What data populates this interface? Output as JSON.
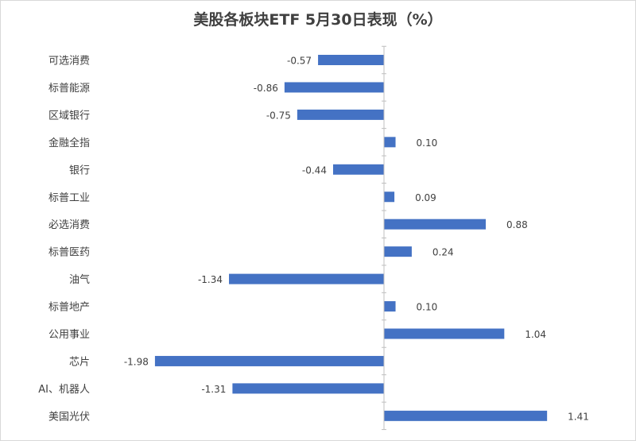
{
  "chart_data": {
    "type": "bar",
    "orientation": "horizontal",
    "title": "美股各板块ETF 5月30日表现（%）",
    "categories": [
      "可选消费",
      "标普能源",
      "区域银行",
      "金融全指",
      "银行",
      "标普工业",
      "必选消费",
      "标普医药",
      "油气",
      "标普地产",
      "公用事业",
      "芯片",
      "AI、机器人",
      "美国光伏"
    ],
    "values": [
      -0.57,
      -0.86,
      -0.75,
      0.1,
      -0.44,
      0.09,
      0.88,
      0.24,
      -1.34,
      0.1,
      1.04,
      -1.98,
      -1.31,
      1.41
    ],
    "value_labels": [
      "-0.57",
      "-0.86",
      "-0.75",
      "0.10",
      "-0.44",
      "0.09",
      "0.88",
      "0.24",
      "-1.34",
      "0.10",
      "1.04",
      "-1.98",
      "-1.31",
      "1.41"
    ],
    "xlim": [
      -2.0,
      1.5
    ],
    "grid": false,
    "legend": "none",
    "bar_color": "#4472c4"
  }
}
